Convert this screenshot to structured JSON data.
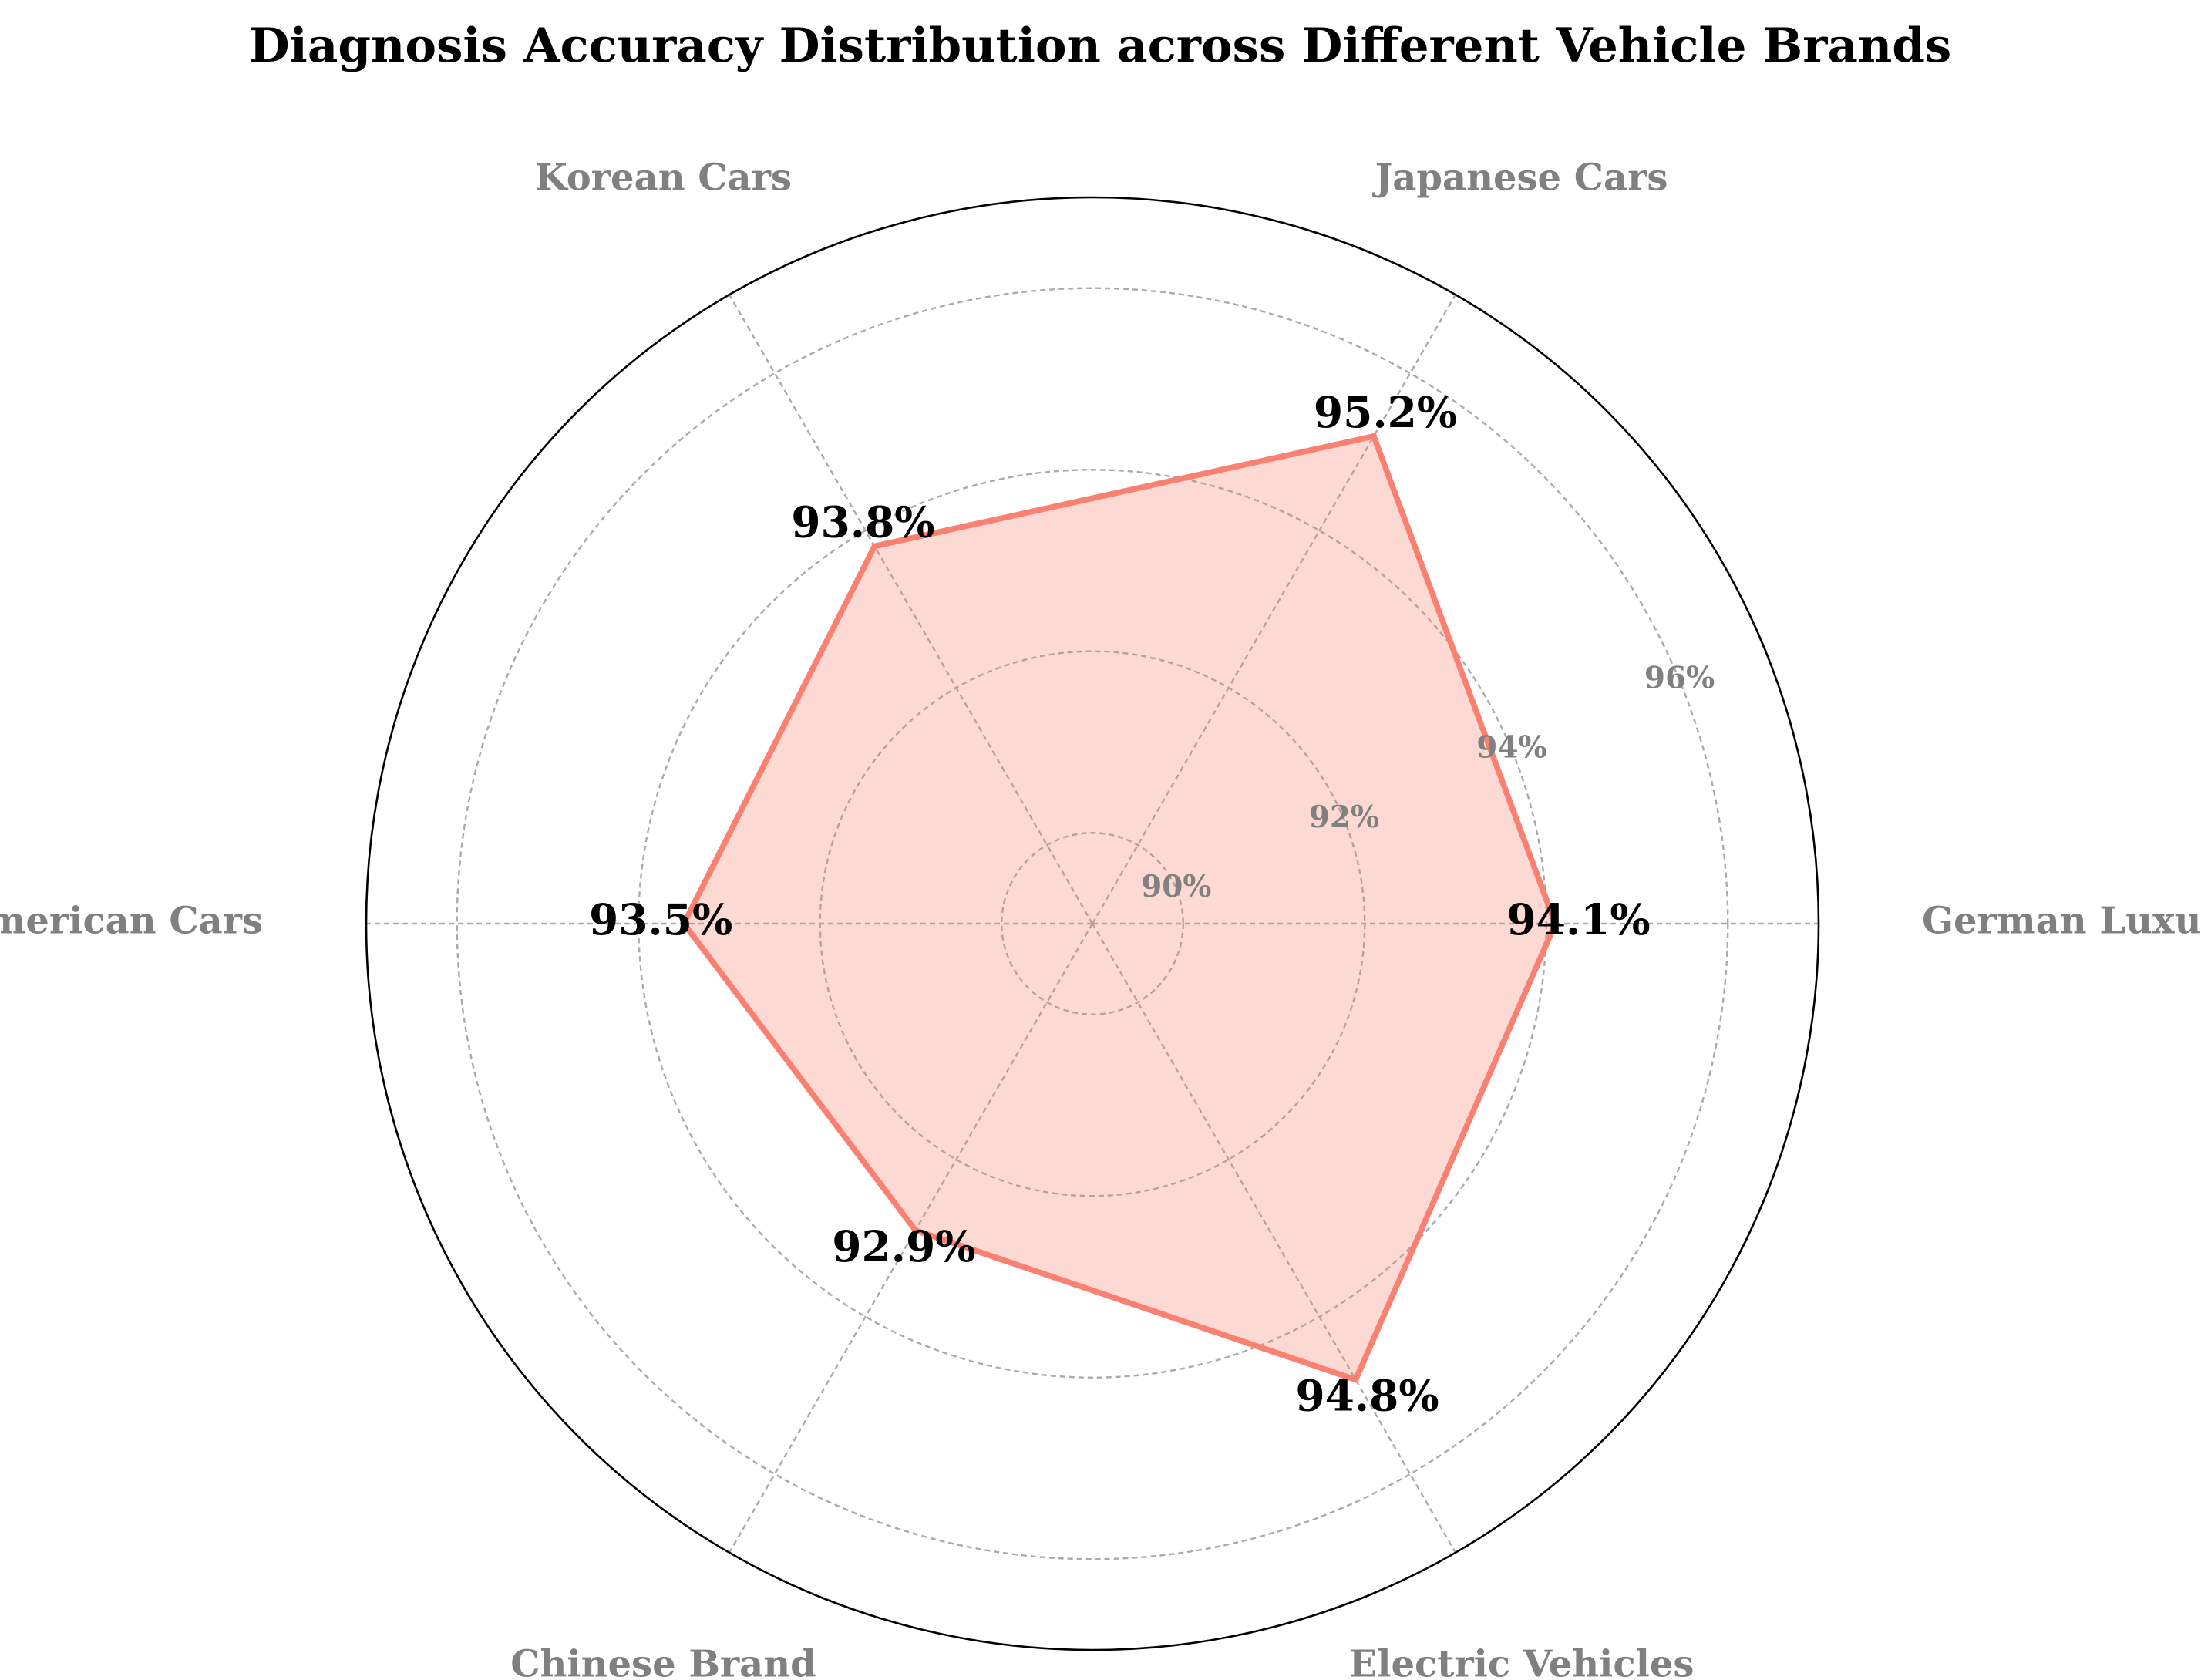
{
  "chart_data": {
    "type": "radar",
    "title": "Diagnosis Accuracy Distribution across Different Vehicle Brands",
    "categories": [
      "German Luxury",
      "Japanese Cars",
      "Korean Cars",
      "American Cars",
      "Chinese Brand",
      "Electric Vehicles"
    ],
    "series": [
      {
        "values": [
          94.1,
          95.2,
          93.8,
          93.5,
          92.9,
          94.8
        ],
        "value_labels": [
          "94.1%",
          "95.2%",
          "93.8%",
          "93.5%",
          "92.9%",
          "94.8%"
        ]
      }
    ],
    "rlim": [
      89,
      97
    ],
    "radial_ticks": [
      90,
      92,
      94,
      96
    ],
    "radial_tick_labels": [
      "90%",
      "92%",
      "94%",
      "96%"
    ],
    "grid": true,
    "colors": {
      "line": "#fa8072",
      "fill": "#fa8072",
      "fill_opacity": 0.3,
      "grid": "#aaaaaa",
      "outer_circle": "#000000",
      "category_label": "#808080",
      "tick_label": "#808080"
    }
  }
}
